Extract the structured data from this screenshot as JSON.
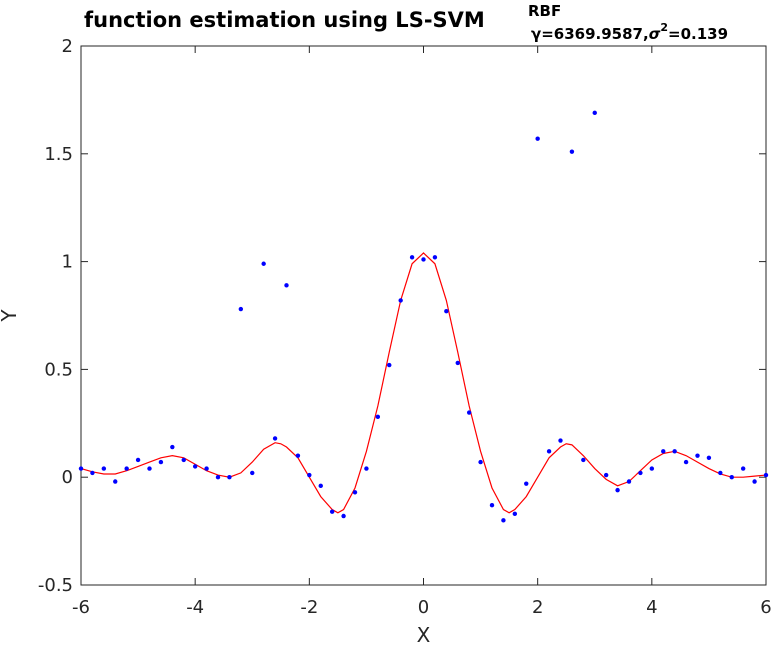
{
  "chart_data": {
    "type": "scatter",
    "title": {
      "main": "function estimation using  LS-SVM",
      "superscript": "RBF",
      "subscript_gamma": "γ=6369.9587,",
      "subscript_sigma": "σ",
      "subscript_sigma_exp": "2",
      "subscript_sigma_val": "=0.139"
    },
    "xlabel": "X",
    "ylabel": "Y",
    "xlim": [
      -6,
      6
    ],
    "ylim": [
      -0.5,
      2
    ],
    "xticks": [
      -6,
      -4,
      -2,
      0,
      2,
      4,
      6
    ],
    "yticks": [
      -0.5,
      0,
      0.5,
      1,
      1.5,
      2
    ],
    "xtick_labels": [
      "-6",
      "-4",
      "-2",
      "0",
      "2",
      "4",
      "6"
    ],
    "ytick_labels": [
      "-0.5",
      "0",
      "0.5",
      "1",
      "1.5",
      "2"
    ],
    "colors": {
      "points": "#0000ff",
      "curve": "#ff0000",
      "axes": "#262626"
    },
    "series": [
      {
        "kind": "points",
        "x": [
          -6.0,
          -5.8,
          -5.6,
          -5.4,
          -5.2,
          -5.0,
          -4.8,
          -4.6,
          -4.4,
          -4.2,
          -4.0,
          -3.8,
          -3.6,
          -3.4,
          -3.2,
          -3.0,
          -2.8,
          -2.6,
          -2.4,
          -2.2,
          -2.0,
          -1.8,
          -1.6,
          -1.4,
          -1.2,
          -1.0,
          -0.8,
          -0.6,
          -0.4,
          -0.2,
          0.0,
          0.2,
          0.4,
          0.6,
          0.8,
          1.0,
          1.2,
          1.4,
          1.6,
          1.8,
          2.0,
          2.2,
          2.4,
          2.6,
          2.8,
          3.0,
          3.2,
          3.4,
          3.6,
          3.8,
          4.0,
          4.2,
          4.4,
          4.6,
          4.8,
          5.0,
          5.2,
          5.4,
          5.6,
          5.8,
          6.0
        ],
        "y": [
          0.04,
          0.02,
          0.04,
          -0.02,
          0.04,
          0.08,
          0.04,
          0.07,
          0.14,
          0.08,
          0.05,
          0.04,
          0.0,
          0.0,
          0.78,
          0.02,
          0.99,
          0.18,
          0.89,
          0.1,
          0.01,
          -0.04,
          -0.16,
          -0.18,
          -0.07,
          0.04,
          0.28,
          0.52,
          0.82,
          1.02,
          1.01,
          1.02,
          0.77,
          0.53,
          0.3,
          0.07,
          -0.13,
          -0.2,
          -0.17,
          -0.03,
          1.57,
          0.12,
          0.17,
          1.51,
          0.08,
          1.69,
          0.01,
          -0.06,
          -0.02,
          0.02,
          0.04,
          0.12,
          0.12,
          0.07,
          0.1,
          0.09,
          0.02,
          0.0,
          0.04,
          -0.02,
          0.01
        ]
      },
      {
        "kind": "line",
        "x": [
          -6.0,
          -5.8,
          -5.6,
          -5.4,
          -5.2,
          -5.0,
          -4.8,
          -4.6,
          -4.4,
          -4.2,
          -4.0,
          -3.8,
          -3.6,
          -3.4,
          -3.2,
          -3.0,
          -2.8,
          -2.6,
          -2.5,
          -2.4,
          -2.2,
          -2.0,
          -1.8,
          -1.6,
          -1.5,
          -1.4,
          -1.2,
          -1.0,
          -0.8,
          -0.6,
          -0.4,
          -0.2,
          0.0,
          0.2,
          0.4,
          0.6,
          0.8,
          1.0,
          1.2,
          1.4,
          1.5,
          1.6,
          1.8,
          2.0,
          2.2,
          2.4,
          2.5,
          2.6,
          2.8,
          3.0,
          3.2,
          3.4,
          3.6,
          3.8,
          4.0,
          4.2,
          4.4,
          4.6,
          4.8,
          5.0,
          5.2,
          5.4,
          5.6,
          5.8,
          6.0
        ],
        "y": [
          0.04,
          0.025,
          0.015,
          0.015,
          0.03,
          0.05,
          0.07,
          0.09,
          0.1,
          0.09,
          0.06,
          0.03,
          0.01,
          0.0,
          0.02,
          0.07,
          0.13,
          0.16,
          0.155,
          0.14,
          0.09,
          0.0,
          -0.09,
          -0.15,
          -0.165,
          -0.15,
          -0.05,
          0.12,
          0.33,
          0.58,
          0.82,
          0.99,
          1.04,
          0.99,
          0.82,
          0.58,
          0.33,
          0.12,
          -0.05,
          -0.15,
          -0.165,
          -0.15,
          -0.09,
          0.0,
          0.09,
          0.14,
          0.155,
          0.15,
          0.1,
          0.04,
          -0.01,
          -0.04,
          -0.02,
          0.03,
          0.08,
          0.11,
          0.12,
          0.1,
          0.07,
          0.04,
          0.015,
          0.0,
          0.0,
          0.005,
          0.01
        ]
      }
    ]
  }
}
